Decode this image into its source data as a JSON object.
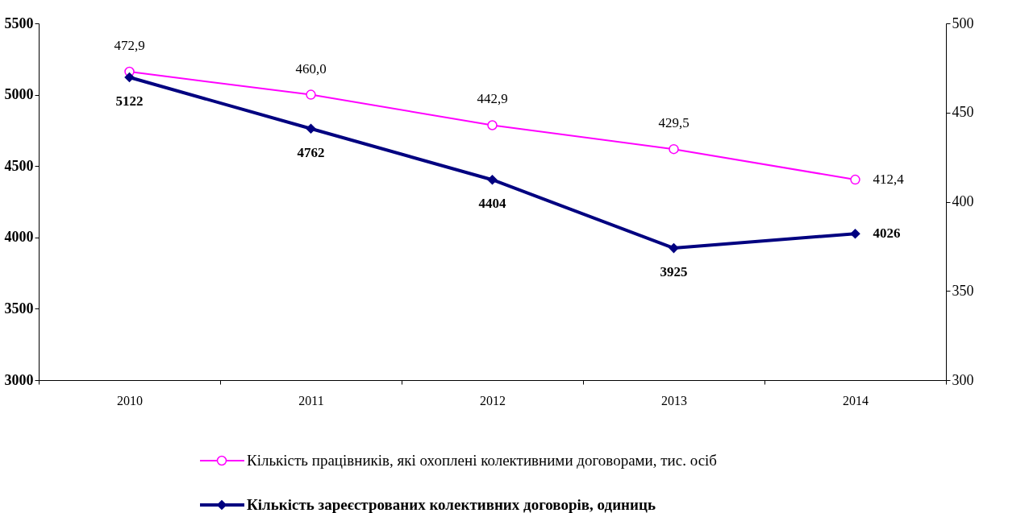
{
  "chart_data": {
    "type": "line",
    "categories": [
      "2010",
      "2011",
      "2012",
      "2013",
      "2014"
    ],
    "series": [
      {
        "name": "Кількість працівників, які охоплені колективними договорами, тис. осіб",
        "color": "#ff00ff",
        "values": [
          472.9,
          460.0,
          442.9,
          429.5,
          412.4
        ],
        "value_labels": [
          "472,9",
          "460,0",
          "442,9",
          "429,5",
          "412,4"
        ],
        "axis": "y2",
        "marker": "circle"
      },
      {
        "name": "Кількість зареєстрованих колективних договорів, одиниць",
        "color": "#000080",
        "values": [
          5122,
          4762,
          4404,
          3925,
          4026
        ],
        "value_labels": [
          "5122",
          "4762",
          "4404",
          "3925",
          "4026"
        ],
        "axis": "y",
        "marker": "diamond"
      }
    ],
    "ylim": [
      3000,
      5500
    ],
    "yticks": [
      3000,
      3500,
      4000,
      4500,
      5000,
      5500
    ],
    "y2lim": [
      300,
      500
    ],
    "y2ticks": [
      300,
      350,
      400,
      450,
      500
    ],
    "legend": "bottom",
    "grid": false,
    "line_style": "solid"
  }
}
